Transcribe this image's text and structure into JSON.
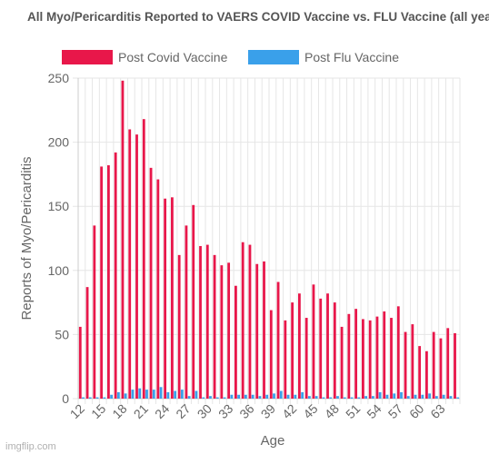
{
  "watermark": "imgflip.com",
  "colors": {
    "covid": "#e8174a",
    "flu": "#3aa0ea",
    "grid": "#e6e6e6",
    "axis_text": "#666666"
  },
  "chart_data": {
    "type": "bar",
    "title": "All Myo/Pericarditis Reported to VAERS COVID Vaccine vs. FLU Vaccine (all years)",
    "xlabel": "Age",
    "ylabel": "Reports of Myo/Pericarditis",
    "ylim": [
      0,
      250
    ],
    "yticks": [
      0,
      50,
      100,
      150,
      200,
      250
    ],
    "grid": true,
    "legend_position": "top",
    "categories": [
      12,
      13,
      14,
      15,
      16,
      17,
      18,
      19,
      20,
      21,
      22,
      23,
      24,
      25,
      26,
      27,
      28,
      29,
      30,
      31,
      32,
      33,
      34,
      35,
      36,
      37,
      38,
      39,
      40,
      41,
      42,
      43,
      44,
      45,
      46,
      47,
      48,
      49,
      50,
      51,
      52,
      53,
      54,
      55,
      56,
      57,
      58,
      59,
      60,
      61,
      62,
      63,
      64,
      65
    ],
    "tick_labels": [
      "12",
      "15",
      "18",
      "21",
      "24",
      "27",
      "30",
      "33",
      "36",
      "39",
      "42",
      "45",
      "48",
      "51",
      "54",
      "57",
      "60",
      "63"
    ],
    "series": [
      {
        "name": "Post Covid Vaccine",
        "values": [
          56,
          87,
          135,
          181,
          182,
          192,
          248,
          210,
          206,
          218,
          180,
          171,
          156,
          157,
          112,
          135,
          151,
          119,
          120,
          112,
          104,
          106,
          88,
          122,
          120,
          105,
          107,
          69,
          91,
          61,
          75,
          82,
          63,
          89,
          78,
          82,
          75,
          56,
          66,
          70,
          62,
          61,
          64,
          68,
          63,
          72,
          52,
          58,
          41,
          37,
          52,
          47,
          55,
          51
        ]
      },
      {
        "name": "Post Flu Vaccine",
        "values": [
          1,
          1,
          1,
          1,
          3,
          5,
          4,
          7,
          8,
          7,
          7,
          9,
          5,
          6,
          7,
          2,
          6,
          1,
          2,
          1,
          1,
          3,
          3,
          3,
          3,
          2,
          3,
          4,
          6,
          3,
          3,
          5,
          2,
          2,
          1,
          1,
          2,
          1,
          1,
          1,
          2,
          2,
          5,
          3,
          4,
          5,
          2,
          3,
          3,
          4,
          2,
          3,
          2,
          1
        ]
      }
    ]
  }
}
